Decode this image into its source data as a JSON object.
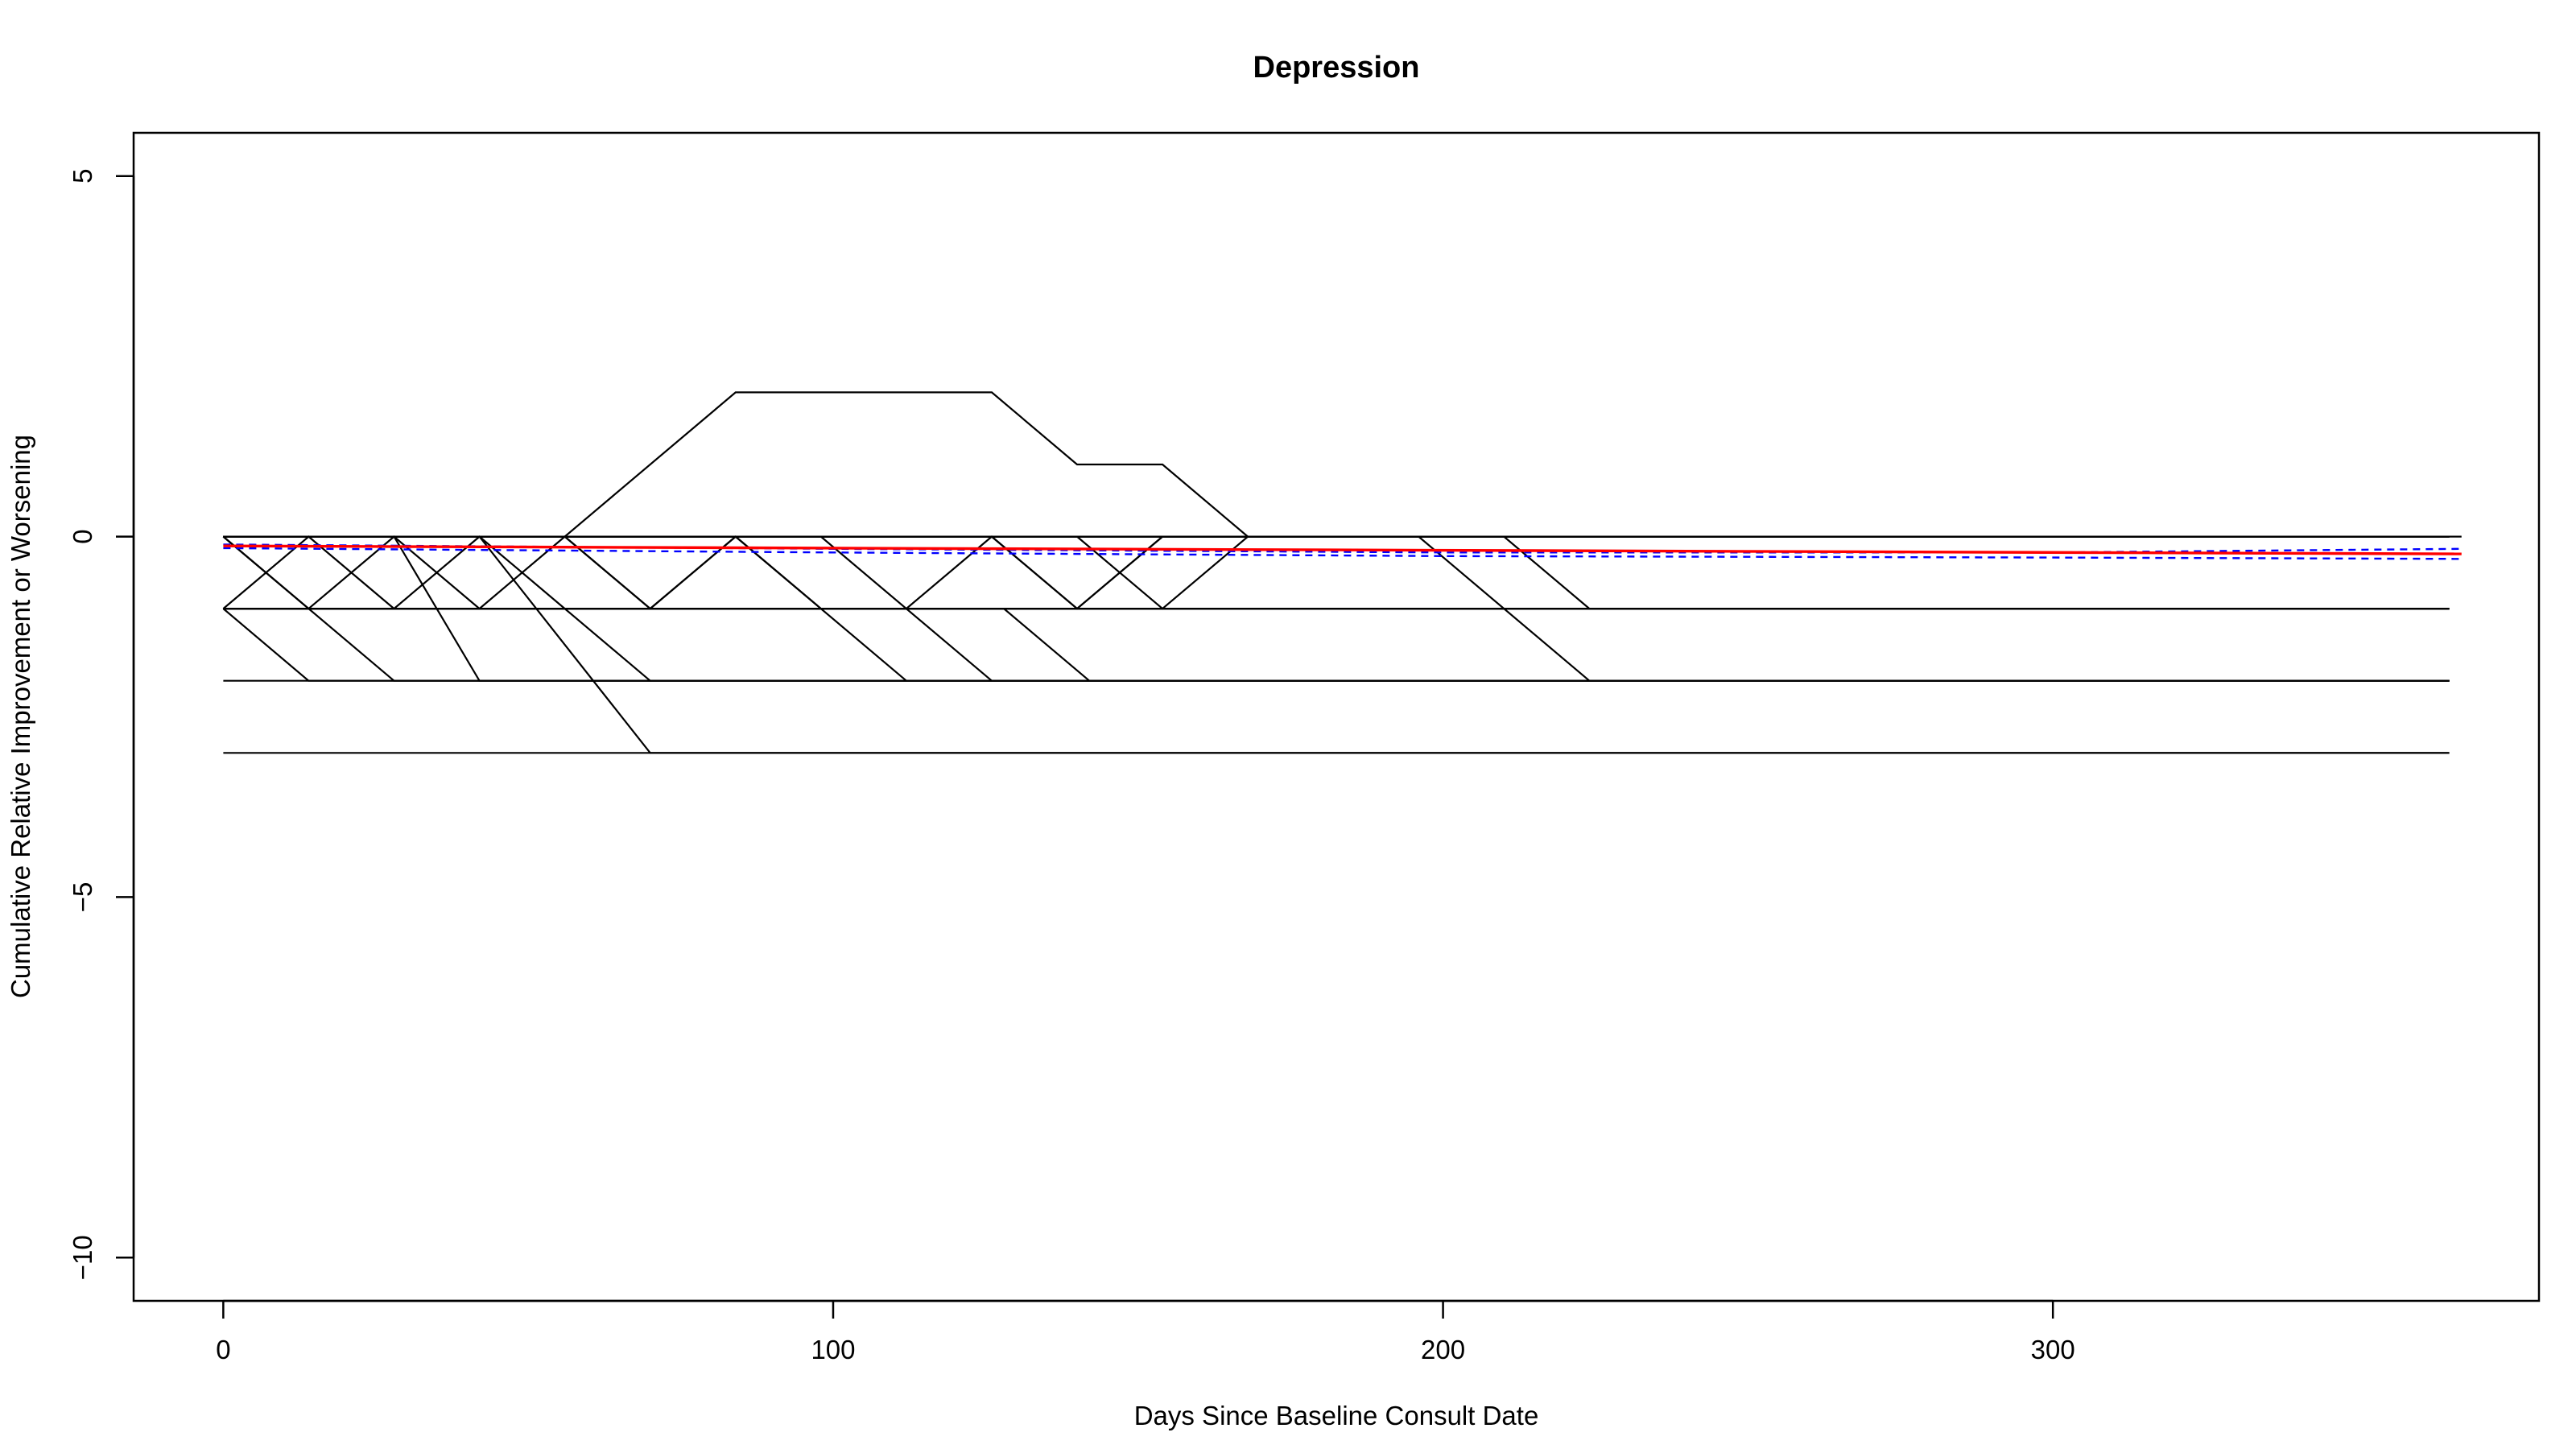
{
  "chart_data": {
    "type": "line",
    "title": "Depression",
    "xlabel": "Days Since Baseline Consult Date",
    "ylabel": "Cumulative Relative Improvement or Worsening",
    "xlim": [
      -14.7,
      379.7
    ],
    "ylim": [
      -10.6,
      5.6
    ],
    "x_ticks": [
      0,
      100,
      200,
      300
    ],
    "y_ticks": [
      5,
      0,
      -5,
      -10
    ],
    "grid": false,
    "legend": "none",
    "colors": {
      "trajectories": "#000000",
      "fit": "#ff0000",
      "confidence_band": "#0000ff",
      "frame": "#000000"
    },
    "series": [
      {
        "x": [
          0,
          365
        ],
        "y": [
          0,
          0
        ]
      },
      {
        "x": [
          0,
          367
        ],
        "y": [
          0,
          0
        ]
      },
      {
        "x": [
          0,
          14,
          365
        ],
        "y": [
          -1,
          -2,
          -2
        ]
      },
      {
        "x": [
          0,
          14,
          28,
          365
        ],
        "y": [
          -1,
          0,
          -1,
          -1
        ]
      },
      {
        "x": [
          0,
          14,
          28,
          42,
          365
        ],
        "y": [
          0,
          -1,
          0,
          -1,
          -1
        ]
      },
      {
        "x": [
          0,
          14,
          28,
          365
        ],
        "y": [
          0,
          -1,
          -2,
          -2
        ]
      },
      {
        "x": [
          0,
          28,
          42,
          365
        ],
        "y": [
          0,
          0,
          -2,
          -2
        ]
      },
      {
        "x": [
          0,
          28,
          42,
          56,
          70,
          365
        ],
        "y": [
          -1,
          -1,
          0,
          -1,
          -2,
          -2
        ]
      },
      {
        "x": [
          0,
          42,
          70,
          365
        ],
        "y": [
          0,
          0,
          -3,
          -3
        ]
      },
      {
        "x": [
          0,
          42,
          56,
          70,
          84,
          98,
          365
        ],
        "y": [
          -1,
          -1,
          0,
          -1,
          0,
          -1,
          -1
        ]
      },
      {
        "x": [
          0,
          56,
          70,
          365
        ],
        "y": [
          0,
          0,
          -1,
          -1
        ]
      },
      {
        "x": [
          0,
          56,
          84,
          126,
          140,
          154,
          168,
          365
        ],
        "y": [
          0,
          0,
          2,
          2,
          1,
          1,
          0,
          0
        ]
      },
      {
        "x": [
          0,
          70,
          84,
          365
        ],
        "y": [
          -1,
          -1,
          0,
          0
        ]
      },
      {
        "x": [
          0,
          84,
          112,
          365
        ],
        "y": [
          0,
          0,
          -2,
          -2
        ]
      },
      {
        "x": [
          0,
          98,
          126,
          365
        ],
        "y": [
          0,
          0,
          -2,
          -2
        ]
      },
      {
        "x": [
          0,
          112,
          126,
          140,
          154,
          365
        ],
        "y": [
          -1,
          -1,
          0,
          -1,
          0,
          0
        ]
      },
      {
        "x": [
          0,
          126,
          140,
          154,
          365
        ],
        "y": [
          0,
          0,
          -1,
          0,
          0
        ]
      },
      {
        "x": [
          0,
          128,
          142,
          365
        ],
        "y": [
          -1,
          -1,
          -2,
          -2
        ]
      },
      {
        "x": [
          0,
          140,
          154,
          168,
          365
        ],
        "y": [
          0,
          0,
          -1,
          0,
          0
        ]
      },
      {
        "x": [
          0,
          154,
          365
        ],
        "y": [
          -2,
          -2,
          -2
        ]
      },
      {
        "x": [
          0,
          196,
          224,
          365
        ],
        "y": [
          0,
          0,
          -2,
          -2
        ]
      },
      {
        "x": [
          0,
          210,
          224,
          365
        ],
        "y": [
          0,
          0,
          -1,
          -1
        ]
      },
      {
        "x": [
          0,
          70,
          365
        ],
        "y": [
          -3,
          -3,
          -3
        ]
      }
    ],
    "fit": {
      "x": [
        0,
        367
      ],
      "y": [
        -0.13,
        -0.24
      ]
    },
    "band_upper": {
      "x": [
        0,
        100,
        200,
        300,
        367
      ],
      "y": [
        -0.11,
        -0.17,
        -0.22,
        -0.22,
        -0.17
      ]
    },
    "band_lower": {
      "x": [
        0,
        100,
        200,
        300,
        367
      ],
      "y": [
        -0.16,
        -0.22,
        -0.27,
        -0.29,
        -0.31
      ]
    }
  }
}
